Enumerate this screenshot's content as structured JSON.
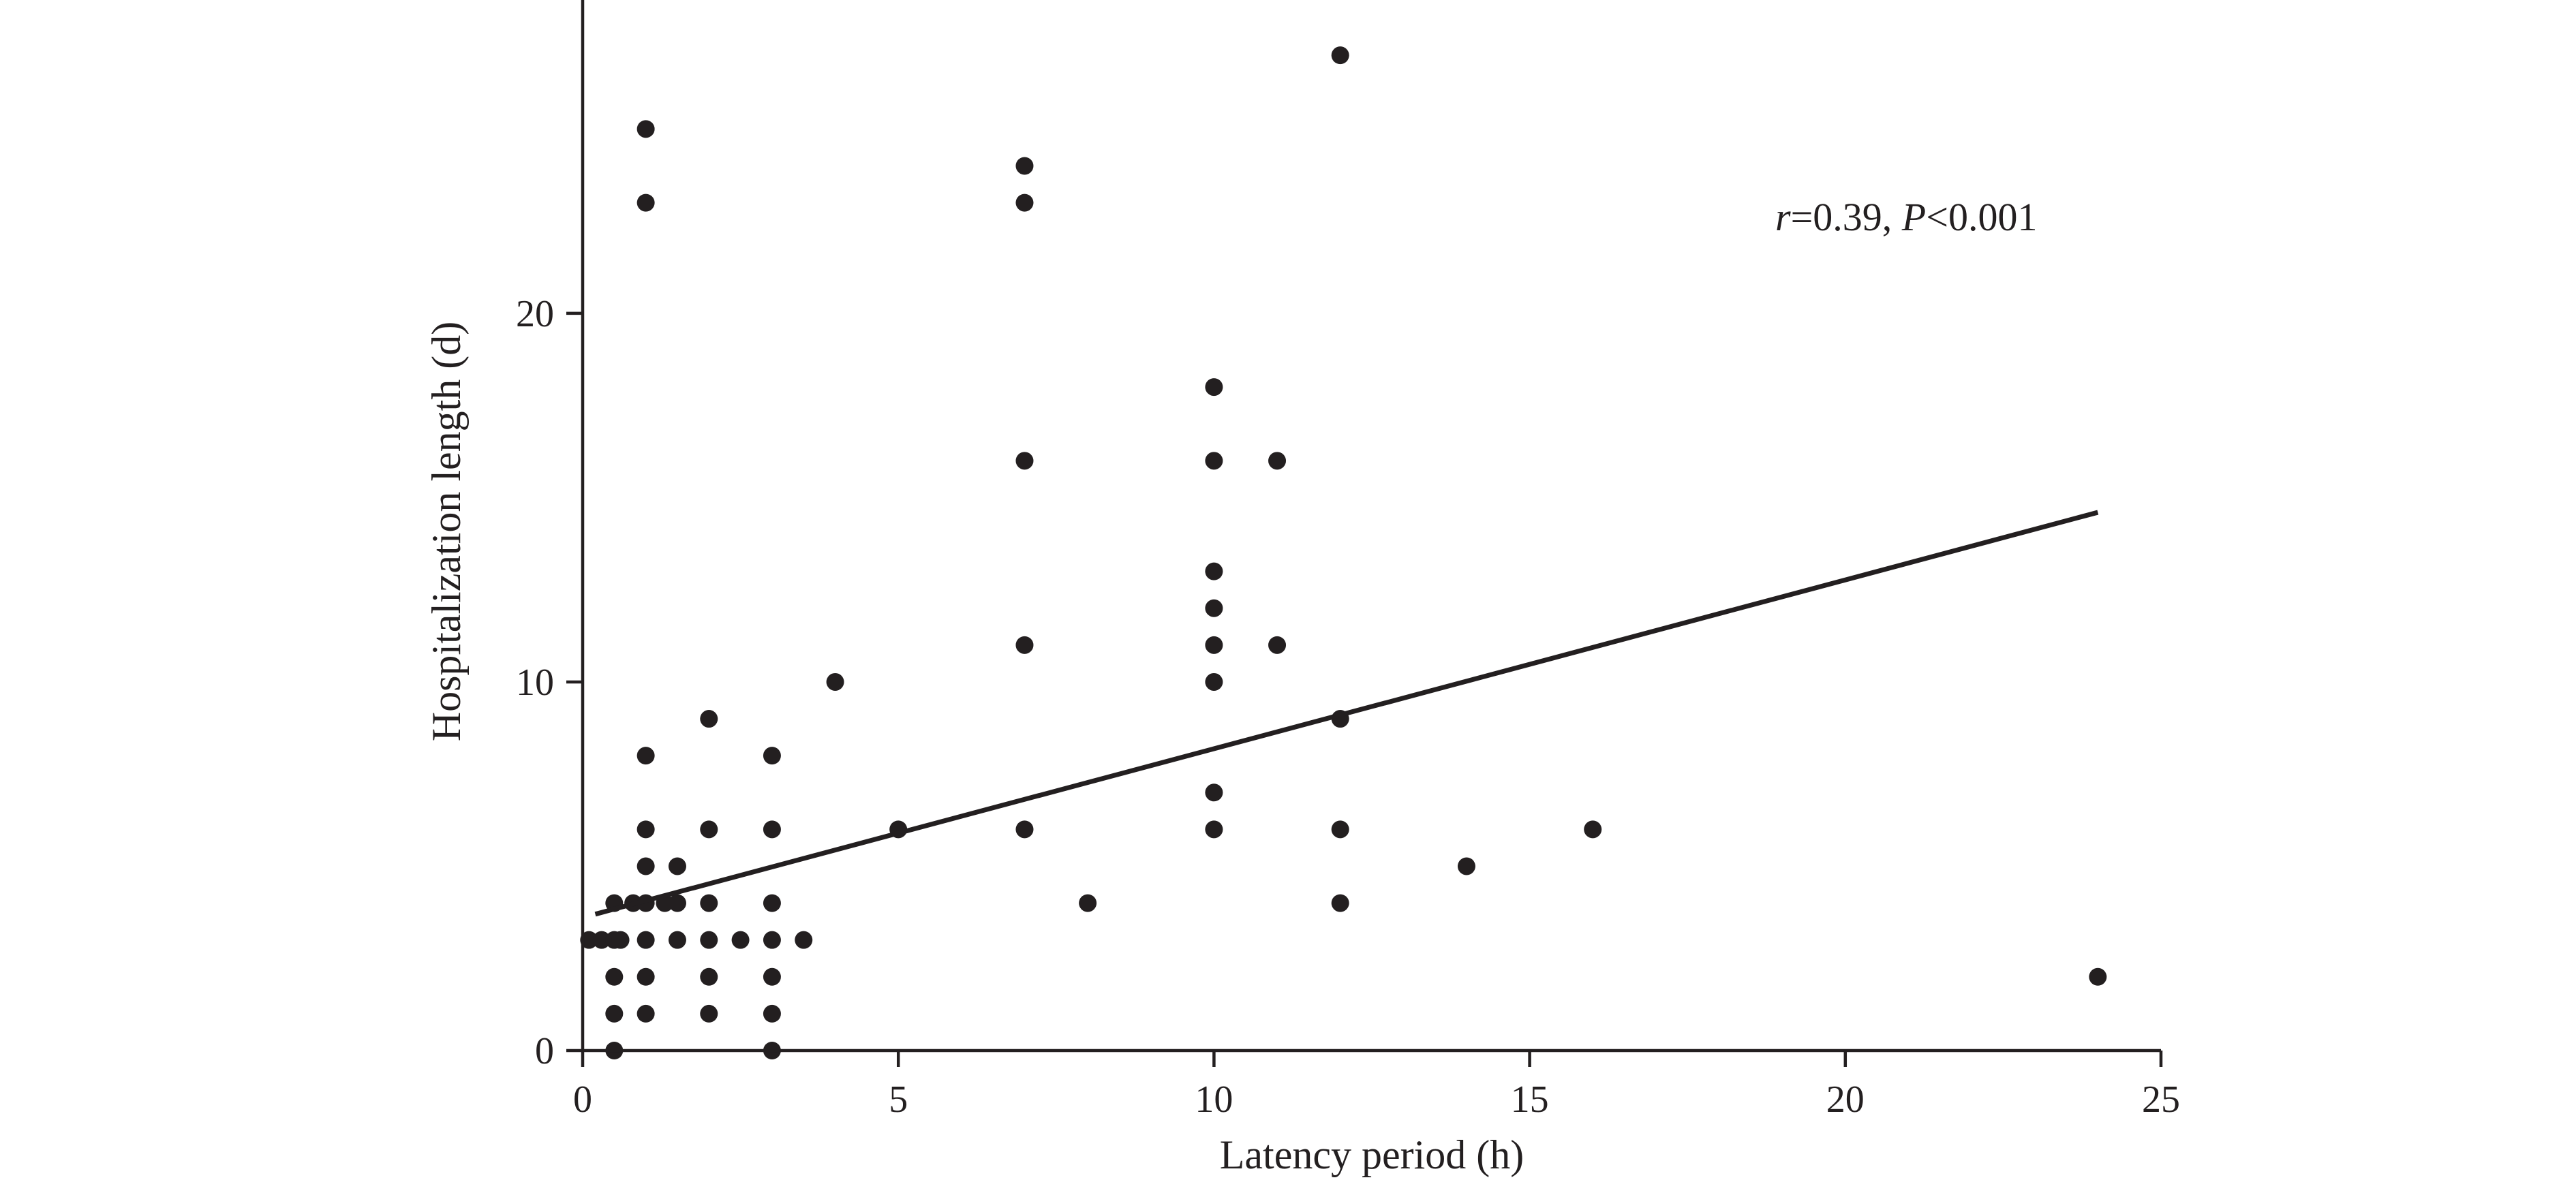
{
  "chart_data": {
    "type": "scatter",
    "title": "",
    "xlabel": "Latency period (h)",
    "ylabel": "Hospitalization length (d)",
    "xlim": [
      0,
      25
    ],
    "ylim": [
      0,
      28.5
    ],
    "x_ticks": [
      0,
      5,
      10,
      15,
      20,
      25
    ],
    "y_ticks": [
      0,
      10,
      20
    ],
    "grid": false,
    "annotation": {
      "r_symbol": "r",
      "r_text": "=0.39, ",
      "p_symbol": "P",
      "p_text": "<0.001"
    },
    "points": [
      {
        "x": 0.1,
        "y": 3
      },
      {
        "x": 0.3,
        "y": 3
      },
      {
        "x": 0.5,
        "y": 3
      },
      {
        "x": 0.6,
        "y": 3
      },
      {
        "x": 0.5,
        "y": 4
      },
      {
        "x": 0.5,
        "y": 2
      },
      {
        "x": 0.5,
        "y": 1
      },
      {
        "x": 0.5,
        "y": 0
      },
      {
        "x": 0.8,
        "y": 4
      },
      {
        "x": 1,
        "y": 4
      },
      {
        "x": 1,
        "y": 3
      },
      {
        "x": 1,
        "y": 2
      },
      {
        "x": 1,
        "y": 1
      },
      {
        "x": 1,
        "y": 5
      },
      {
        "x": 1,
        "y": 6
      },
      {
        "x": 1,
        "y": 8
      },
      {
        "x": 1,
        "y": 23
      },
      {
        "x": 1,
        "y": 25
      },
      {
        "x": 1.3,
        "y": 4
      },
      {
        "x": 1.5,
        "y": 4
      },
      {
        "x": 1.5,
        "y": 3
      },
      {
        "x": 1.5,
        "y": 5
      },
      {
        "x": 2,
        "y": 9
      },
      {
        "x": 2,
        "y": 6
      },
      {
        "x": 2,
        "y": 4
      },
      {
        "x": 2,
        "y": 3
      },
      {
        "x": 2,
        "y": 2
      },
      {
        "x": 2,
        "y": 1
      },
      {
        "x": 2.5,
        "y": 3
      },
      {
        "x": 3,
        "y": 8
      },
      {
        "x": 3,
        "y": 6
      },
      {
        "x": 3,
        "y": 4
      },
      {
        "x": 3,
        "y": 3
      },
      {
        "x": 3,
        "y": 2
      },
      {
        "x": 3,
        "y": 1
      },
      {
        "x": 3,
        "y": 0
      },
      {
        "x": 3.5,
        "y": 3
      },
      {
        "x": 4,
        "y": 10
      },
      {
        "x": 5,
        "y": 6
      },
      {
        "x": 7,
        "y": 24
      },
      {
        "x": 7,
        "y": 23
      },
      {
        "x": 7,
        "y": 16
      },
      {
        "x": 7,
        "y": 11
      },
      {
        "x": 7,
        "y": 6
      },
      {
        "x": 8,
        "y": 4
      },
      {
        "x": 10,
        "y": 18
      },
      {
        "x": 10,
        "y": 16
      },
      {
        "x": 10,
        "y": 13
      },
      {
        "x": 10,
        "y": 12
      },
      {
        "x": 10,
        "y": 11
      },
      {
        "x": 10,
        "y": 10
      },
      {
        "x": 10,
        "y": 7
      },
      {
        "x": 10,
        "y": 6
      },
      {
        "x": 11,
        "y": 16
      },
      {
        "x": 11,
        "y": 11
      },
      {
        "x": 12,
        "y": 27
      },
      {
        "x": 12,
        "y": 9
      },
      {
        "x": 12,
        "y": 6
      },
      {
        "x": 12,
        "y": 4
      },
      {
        "x": 14,
        "y": 5
      },
      {
        "x": 16,
        "y": 6
      },
      {
        "x": 24,
        "y": 2
      }
    ],
    "fit_line": {
      "x": [
        0.2,
        24
      ],
      "y": [
        3.7,
        14.6
      ]
    }
  }
}
